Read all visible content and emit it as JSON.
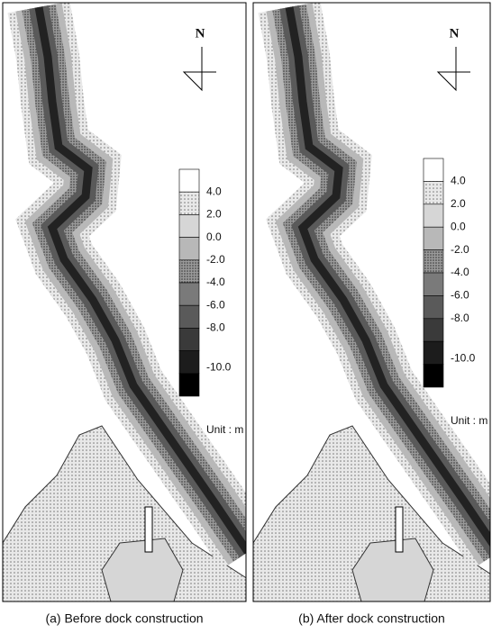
{
  "panels": [
    {
      "caption": "(a) Before dock construction",
      "north": "N",
      "legend": [
        "4.0",
        "2.0",
        "0.0",
        "-2.0",
        "-4.0",
        "-6.0",
        "-8.0",
        "-10.0"
      ],
      "unit": "Unit : m"
    },
    {
      "caption": "(b) After dock construction",
      "north": "N",
      "legend": [
        "4.0",
        "2.0",
        "0.0",
        "-2.0",
        "-4.0",
        "-6.0",
        "-8.0",
        "-10.0"
      ],
      "unit": "Unit : m"
    }
  ]
}
